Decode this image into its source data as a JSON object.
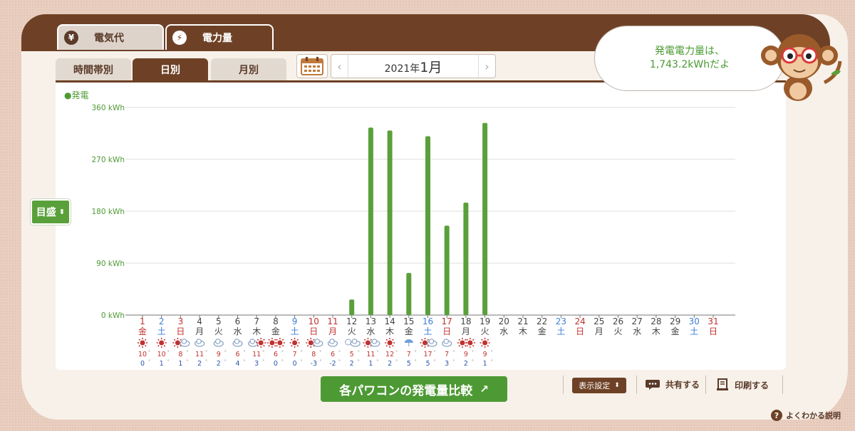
{
  "tabs": {
    "main": [
      {
        "label": "電気代",
        "icon": "yen-icon",
        "glyph": "¥",
        "active": false
      },
      {
        "label": "電力量",
        "icon": "lightning-icon",
        "glyph": "⚡",
        "active": true
      }
    ],
    "sub": [
      {
        "label": "時間帯別",
        "active": false
      },
      {
        "label": "日別",
        "active": true
      },
      {
        "label": "月別",
        "active": false
      }
    ]
  },
  "date_nav": {
    "year": "2021年",
    "month": "1月",
    "prev": "‹",
    "next": "›"
  },
  "speech": {
    "line1": "発電電力量は、",
    "line2": "1,743.2kWhだよ"
  },
  "scale_button": {
    "label": "目盛",
    "glyph": "⬍"
  },
  "compare_button": {
    "label": "各パワコンの発電量比較",
    "glyph": "↗"
  },
  "toolbar": {
    "settings": "表示設定",
    "settings_glyph": "⬍",
    "share": "共有する",
    "print": "印刷する"
  },
  "help": {
    "label": "よくわかる説明",
    "glyph": "?"
  },
  "colors": {
    "brown": "#6e4126",
    "bar": "#5aa03a",
    "blue": "#3d7fd6",
    "red": "#c0312f",
    "sun": "#c0312f",
    "cloud": "#8aa3c4"
  },
  "chart_data": {
    "type": "bar",
    "legend": "●発電",
    "ylabels": [
      "360 kWh",
      "270 kWh",
      "180 kWh",
      "90 kWh",
      "0 kWh"
    ],
    "ylim": [
      0,
      360
    ],
    "days": [
      "1",
      "2",
      "3",
      "4",
      "5",
      "6",
      "7",
      "8",
      "9",
      "10",
      "11",
      "12",
      "13",
      "14",
      "15",
      "16",
      "17",
      "18",
      "19",
      "20",
      "21",
      "22",
      "23",
      "24",
      "25",
      "26",
      "27",
      "28",
      "29",
      "30",
      "31"
    ],
    "weekdays": [
      "金",
      "土",
      "日",
      "月",
      "火",
      "水",
      "木",
      "金",
      "土",
      "日",
      "月",
      "火",
      "水",
      "木",
      "金",
      "土",
      "日",
      "月",
      "火",
      "水",
      "木",
      "金",
      "土",
      "日",
      "月",
      "火",
      "水",
      "木",
      "金",
      "土",
      "日"
    ],
    "day_colors": [
      "red",
      "blue",
      "red",
      "dark",
      "dark",
      "dark",
      "dark",
      "dark",
      "blue",
      "red",
      "red",
      "dark",
      "dark",
      "dark",
      "dark",
      "blue",
      "red",
      "dark",
      "dark",
      "dark",
      "dark",
      "dark",
      "blue",
      "red",
      "dark",
      "dark",
      "dark",
      "dark",
      "dark",
      "blue",
      "red"
    ],
    "values": [
      0,
      0,
      0,
      0,
      0,
      0,
      0,
      0,
      0,
      0,
      0,
      27,
      325,
      320,
      73,
      310,
      155,
      195,
      333,
      null,
      null,
      null,
      null,
      null,
      null,
      null,
      null,
      null,
      null,
      null,
      null
    ],
    "weather": [
      "sun",
      "sun",
      "sun-cloud",
      "cloud",
      "cloud",
      "cloud",
      "cloud-sun",
      "sun-sun",
      "sun",
      "sun-cloud",
      "cloud",
      "snow-cloud",
      "sun-cloud",
      "sun",
      "cloud-rain",
      "sun-cloud",
      "cloud",
      "sun-sun",
      "sun"
    ],
    "high_temps": [
      "10",
      "10",
      "8",
      "11",
      "9",
      "6",
      "11",
      "6",
      "7",
      "8",
      "6",
      "5",
      "11",
      "12",
      "7",
      "17",
      "7",
      "9",
      "9"
    ],
    "low_temps": [
      "0",
      "1",
      "1",
      "2",
      "2",
      "4",
      "3",
      "0",
      "0",
      "-3",
      "-2",
      "2",
      "1",
      "2",
      "5",
      "5",
      "3",
      "2",
      "1"
    ]
  }
}
